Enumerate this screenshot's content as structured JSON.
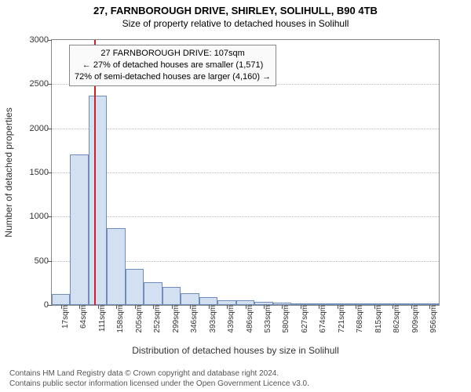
{
  "title": "27, FARNBOROUGH DRIVE, SHIRLEY, SOLIHULL, B90 4TB",
  "subtitle": "Size of property relative to detached houses in Solihull",
  "title_fontsize": 13,
  "subtitle_fontsize": 12,
  "chart": {
    "type": "histogram",
    "ylabel": "Number of detached properties",
    "xlabel": "Distribution of detached houses by size in Solihull",
    "ylim": [
      0,
      3000
    ],
    "ytick_step": 500,
    "yticks": [
      0,
      500,
      1000,
      1500,
      2000,
      2500,
      3000
    ],
    "xticks": [
      17,
      64,
      111,
      158,
      205,
      252,
      299,
      346,
      393,
      439,
      486,
      533,
      580,
      627,
      674,
      721,
      768,
      815,
      862,
      909,
      956
    ],
    "xtick_unit": "sqm",
    "x_range": [
      0,
      980
    ],
    "values": [
      120,
      1700,
      2370,
      870,
      410,
      260,
      200,
      130,
      90,
      55,
      55,
      40,
      25,
      10,
      8,
      5,
      4,
      3,
      2,
      2,
      2
    ],
    "bar_fill": "#d2e0f2",
    "bar_stroke": "#6f8db8",
    "marker_x": 107,
    "marker_color": "#d02028",
    "grid_color": "#bbbbbb",
    "axis_color": "#555555",
    "annotation": {
      "line1": "27 FARNBOROUGH DRIVE: 107sqm",
      "line2": "← 27% of detached houses are smaller (1,571)",
      "line3": "72% of semi-detached houses are larger (4,160) →"
    }
  },
  "footer": {
    "line1": "Contains HM Land Registry data © Crown copyright and database right 2024.",
    "line2": "Contains public sector information licensed under the Open Government Licence v3.0."
  }
}
